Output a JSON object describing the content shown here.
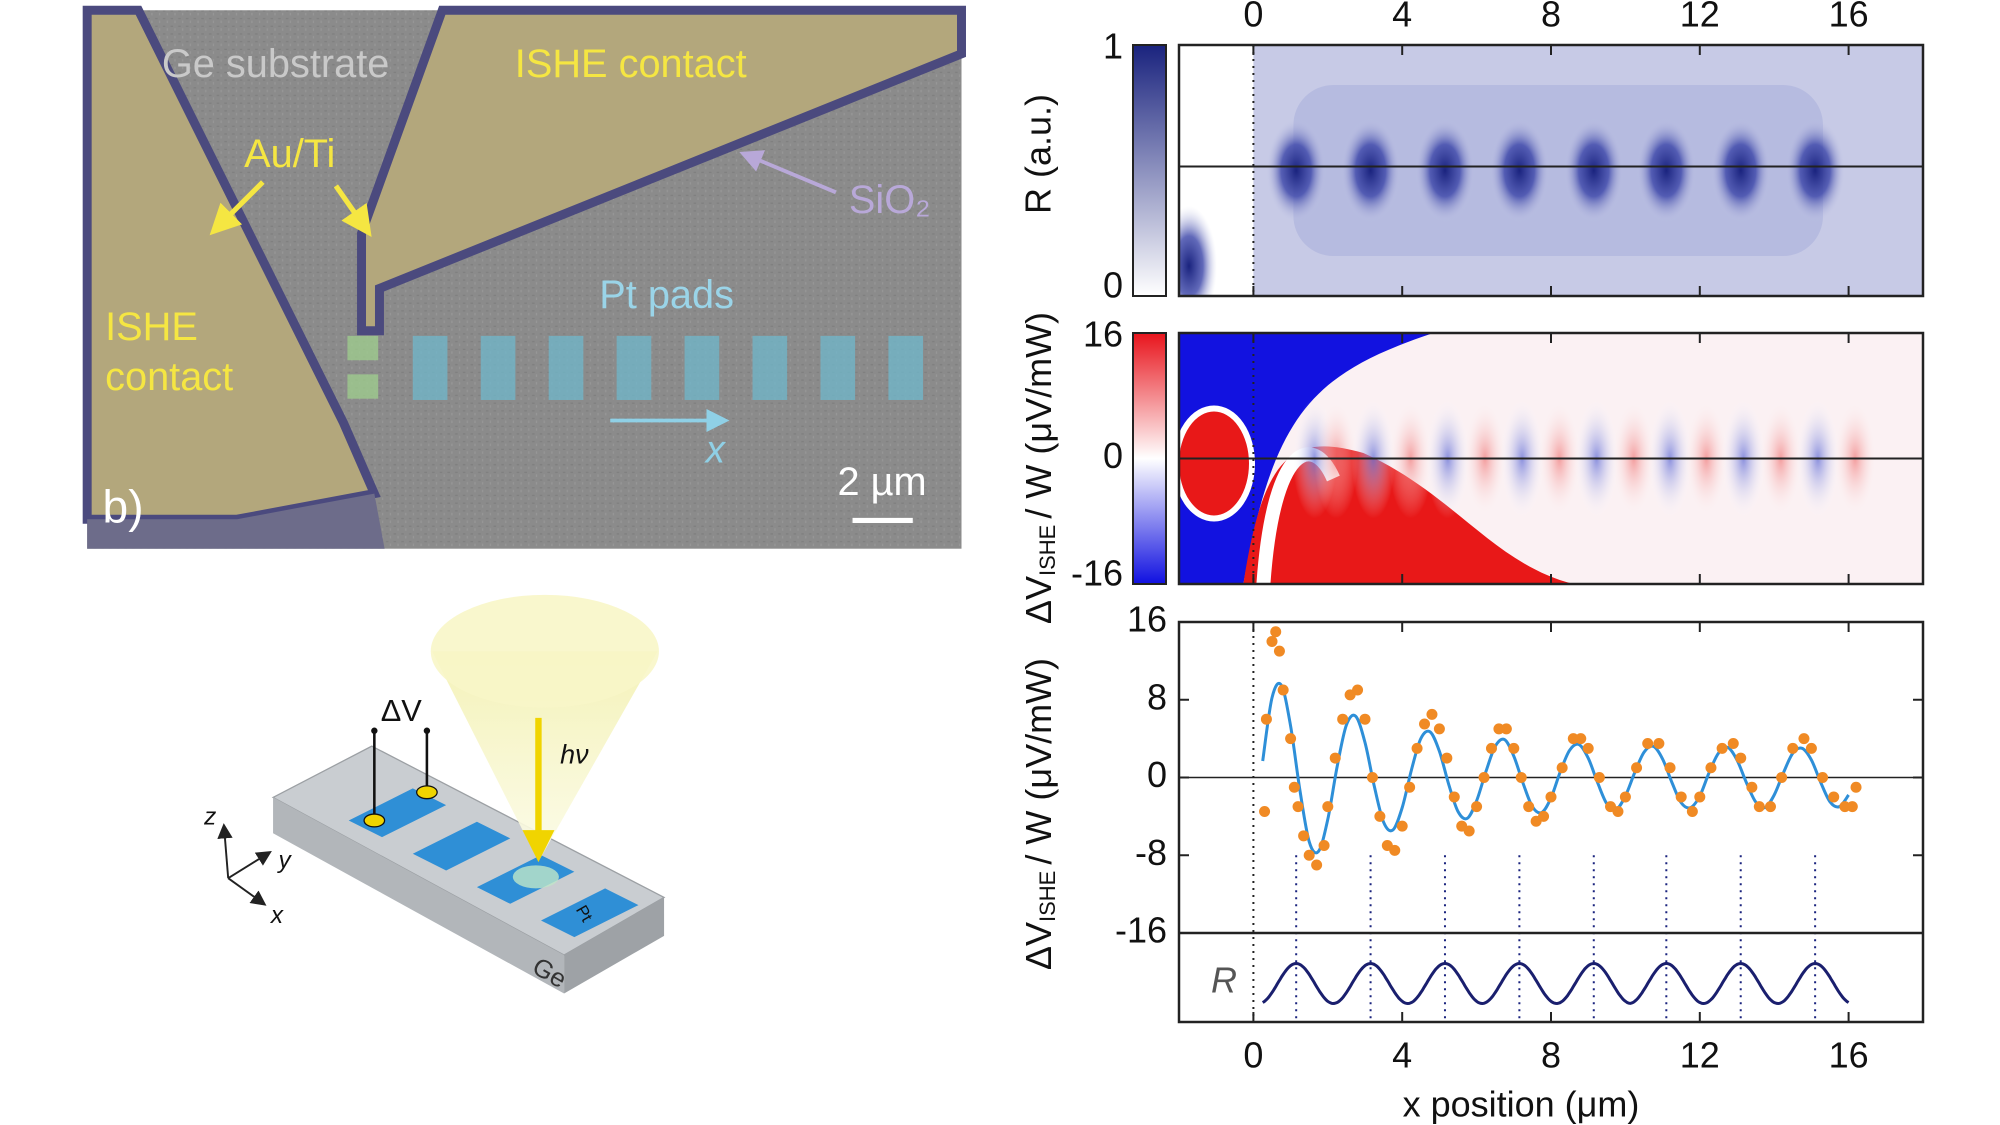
{
  "micrograph": {
    "ge_substrate": "Ge substrate",
    "ishe_contact_top": "ISHE contact",
    "au_ti": "Au/Ti",
    "sio2": "SiO₂",
    "ishe_contact_left": [
      "ISHE",
      "contact"
    ],
    "pt_pads": "Pt pads",
    "x_axis": "x",
    "scale_bar": "2 µm",
    "panel_label": "b)"
  },
  "schematic": {
    "delta_v": "ΔV",
    "photon": "hν",
    "pad": "Pt",
    "substrate": "Ge",
    "axes": [
      "z",
      "y",
      "x"
    ]
  },
  "chart_data": [
    {
      "type": "heatmap",
      "ylabel": "R (a.u.)",
      "xlim": [
        -2,
        18
      ],
      "xticks": [
        0,
        4,
        8,
        12,
        16
      ],
      "colorbar_ticks": [
        1,
        0
      ],
      "colorbar_colors": [
        "#1a237e",
        "#ffffff"
      ]
    },
    {
      "type": "heatmap",
      "ylabel": [
        "ΔV",
        "ISHE",
        "/ W (μV/mW)"
      ],
      "xlim": [
        -2,
        18
      ],
      "xticks": [
        0,
        4,
        8,
        12,
        16
      ],
      "colorbar_ticks": [
        16,
        0,
        -16
      ],
      "colorbar_colors": [
        "#e8141c",
        "#ffffff",
        "#1010e0"
      ]
    },
    {
      "type": "scatter",
      "ylabel": [
        "ΔV",
        "ISHE",
        "/ W (μV/mW)"
      ],
      "xlabel": "x position (μm)",
      "inset_label": "R",
      "xlim": [
        -2,
        18
      ],
      "xticks": [
        0,
        4,
        8,
        12,
        16
      ],
      "ylim": [
        -16,
        16
      ],
      "yticks": [
        -16,
        -8,
        0,
        8,
        16
      ],
      "points": {
        "color": "#f08a24",
        "x": [
          0.3,
          0.35,
          0.5,
          0.6,
          0.7,
          0.8,
          1.0,
          1.1,
          1.2,
          1.35,
          1.5,
          1.7,
          1.9,
          2.0,
          2.2,
          2.4,
          2.6,
          2.8,
          3.0,
          3.2,
          3.4,
          3.6,
          3.8,
          4.0,
          4.2,
          4.4,
          4.6,
          4.8,
          5.0,
          5.2,
          5.4,
          5.6,
          5.8,
          6.0,
          6.2,
          6.4,
          6.6,
          6.8,
          7.0,
          7.2,
          7.4,
          7.6,
          7.8,
          8.0,
          8.3,
          8.6,
          8.8,
          9.0,
          9.3,
          9.6,
          9.8,
          10.0,
          10.3,
          10.6,
          10.9,
          11.2,
          11.5,
          11.8,
          12.0,
          12.3,
          12.6,
          12.9,
          13.1,
          13.4,
          13.6,
          13.9,
          14.2,
          14.5,
          14.8,
          15.0,
          15.3,
          15.6,
          15.9,
          16.1,
          16.2
        ],
        "values": [
          -3.5,
          6,
          14,
          15,
          13,
          9,
          4,
          -1,
          -3,
          -6,
          -8,
          -9,
          -7,
          -3,
          2,
          6,
          8.5,
          9,
          6,
          0,
          -4,
          -7,
          -7.5,
          -5,
          -1,
          3,
          5.5,
          6.5,
          5,
          2,
          -2,
          -5,
          -5.5,
          -3,
          0,
          3,
          5,
          5,
          3,
          0,
          -3,
          -4.5,
          -4,
          -2,
          1,
          4,
          4,
          3,
          0,
          -3,
          -3.5,
          -2,
          1,
          3.5,
          3.5,
          1,
          -2,
          -3.5,
          -2,
          1,
          3,
          3.5,
          2,
          -1,
          -3,
          -3,
          0,
          3,
          4,
          3,
          0,
          -2,
          -3,
          -3,
          -1
        ]
      },
      "fit": {
        "color": "#2e8fd8",
        "x": [
          0.25,
          0.5,
          0.75,
          1.0,
          1.25,
          1.5,
          1.75,
          2.0,
          2.25,
          2.5,
          2.75,
          3.0,
          3.25,
          3.5,
          3.75,
          4.0,
          4.25,
          4.5,
          4.75,
          5.0,
          5.25,
          5.5,
          5.75,
          6.0,
          6.25,
          6.5,
          6.75,
          7.0,
          7.25,
          7.5,
          7.75,
          8.0,
          8.25,
          8.5,
          8.75,
          9.0,
          9.25,
          9.5,
          9.75,
          10.0,
          10.25,
          10.5,
          10.75,
          11.0,
          11.25,
          11.5,
          11.75,
          12.0,
          12.25,
          12.5,
          12.75,
          13.0,
          13.25,
          13.5,
          13.75,
          14.0,
          14.25,
          14.5,
          14.75,
          15.0,
          15.25,
          15.5,
          15.75,
          16.0
        ],
        "values": [
          1.7,
          8.2,
          9.5,
          5.3,
          -1.3,
          -6.6,
          -7.6,
          -4.3,
          1.1,
          5.4,
          6.3,
          3.6,
          -0.9,
          -4.6,
          -5.4,
          -3.1,
          0.8,
          4.0,
          4.7,
          2.7,
          -0.7,
          -3.5,
          -4.2,
          -2.4,
          0.6,
          3.2,
          3.9,
          2.2,
          -0.6,
          -3.0,
          -3.6,
          -2.1,
          0.6,
          2.8,
          3.4,
          2.0,
          -0.5,
          -2.7,
          -3.3,
          -1.9,
          0.5,
          2.6,
          3.2,
          1.9,
          -0.5,
          -2.6,
          -3.1,
          -1.9,
          0.5,
          2.5,
          3.1,
          1.8,
          -0.5,
          -2.5,
          -3.1,
          -1.8,
          0.5,
          2.5,
          3.0,
          1.8,
          -0.5,
          -2.5,
          -3.0,
          -1.8
        ]
      },
      "guides": [
        0,
        1.15,
        3.15,
        5.15,
        7.15,
        9.15,
        11.1,
        13.1,
        15.1
      ]
    }
  ]
}
